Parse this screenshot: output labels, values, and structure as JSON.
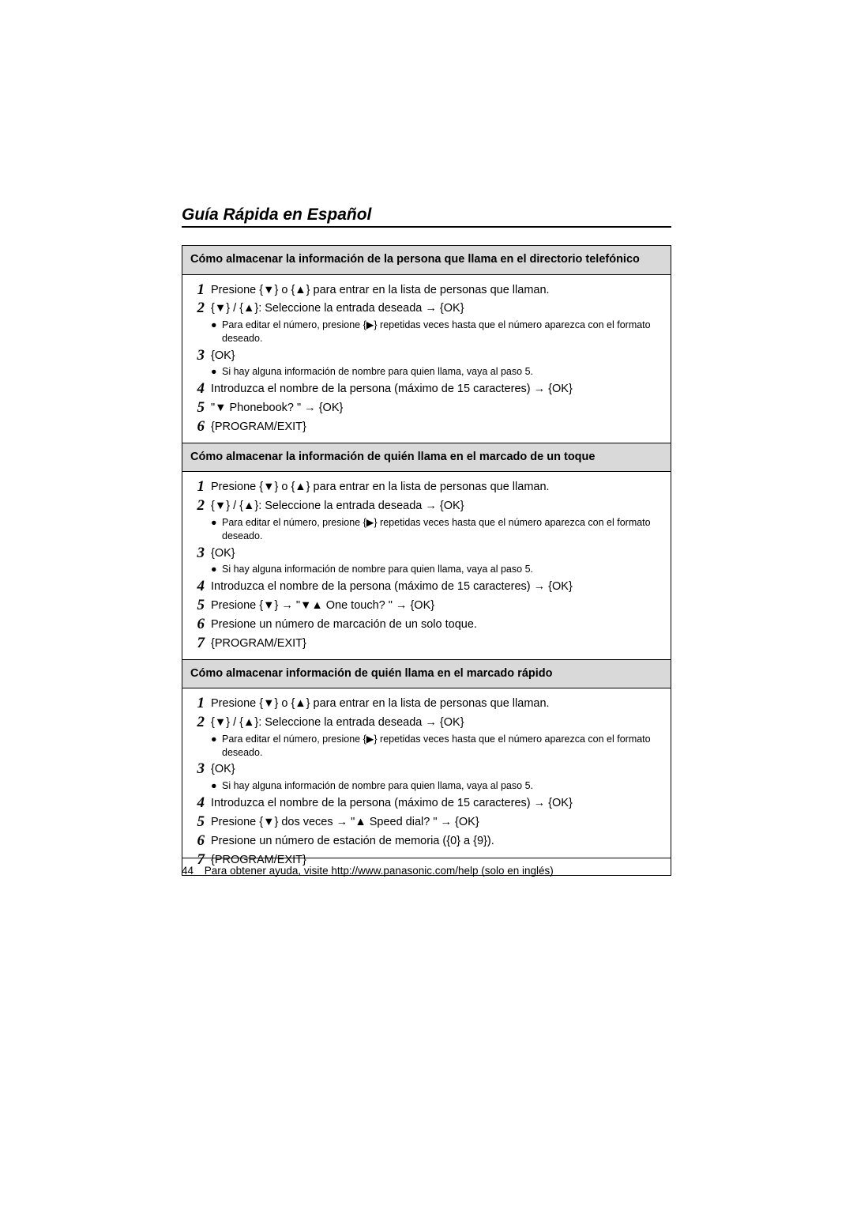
{
  "title": "Guía Rápida en Español",
  "glyphs": {
    "down": "▼",
    "up": "▲",
    "right": "▶",
    "arrow": "→",
    "lb": "{",
    "rb": "}",
    "bullet": "●"
  },
  "sections": [
    {
      "header": "Cómo almacenar la información de la persona que llama en el directorio telefónico",
      "steps": [
        {
          "n": "1",
          "text": "Presione {▼} o {▲} para entrar en la lista de personas que llaman."
        },
        {
          "n": "2",
          "text": "{▼} / {▲}: Seleccione la entrada deseada → {OK}",
          "subs": [
            "Para editar el número, presione {▶} repetidas veces hasta que el número aparezca con el formato deseado."
          ]
        },
        {
          "n": "3",
          "text": "{OK}",
          "subs": [
            "Si hay alguna información de nombre para quien llama, vaya al paso 5."
          ]
        },
        {
          "n": "4",
          "text": "Introduzca el nombre de la persona (máximo de 15 caracteres) → {OK}"
        },
        {
          "n": "5",
          "text": "\"▼ Phonebook?  \" → {OK}"
        },
        {
          "n": "6",
          "text": "{PROGRAM/EXIT}"
        }
      ]
    },
    {
      "header": "Cómo almacenar la información de quién llama en el marcado de un toque",
      "steps": [
        {
          "n": "1",
          "text": "Presione {▼} o {▲} para entrar en la lista de personas que llaman."
        },
        {
          "n": "2",
          "text": "{▼} / {▲}: Seleccione la entrada deseada → {OK}",
          "subs": [
            "Para editar el número, presione {▶} repetidas veces hasta que el número aparezca con el formato deseado."
          ]
        },
        {
          "n": "3",
          "text": "{OK}",
          "subs": [
            "Si hay alguna información de nombre para quien llama, vaya al paso 5."
          ]
        },
        {
          "n": "4",
          "text": "Introduzca el nombre de la persona (máximo de 15 caracteres) → {OK}"
        },
        {
          "n": "5",
          "text": "Presione {▼} → \"▼▲ One touch?    \" → {OK}"
        },
        {
          "n": "6",
          "text": "Presione un número de marcación de un solo toque."
        },
        {
          "n": "7",
          "text": "{PROGRAM/EXIT}"
        }
      ]
    },
    {
      "header": "Cómo almacenar información de quién llama en el marcado rápido",
      "steps": [
        {
          "n": "1",
          "text": "Presione {▼} o {▲} para entrar en la lista de personas que llaman."
        },
        {
          "n": "2",
          "text": "{▼} / {▲}: Seleccione la entrada deseada → {OK}",
          "subs": [
            "Para editar el número, presione {▶} repetidas veces hasta que el número aparezca con el formato deseado."
          ]
        },
        {
          "n": "3",
          "text": "{OK}",
          "subs": [
            "Si hay alguna información de nombre para quien llama, vaya al paso 5."
          ]
        },
        {
          "n": "4",
          "text": "Introduzca el nombre de la persona (máximo de 15 caracteres) → {OK}"
        },
        {
          "n": "5",
          "text": "Presione {▼} dos veces → \"▲ Speed dial?     \" → {OK}"
        },
        {
          "n": "6",
          "text": "Presione un número de estación de memoria ({0} a {9})."
        },
        {
          "n": "7",
          "text": "{PROGRAM/EXIT}"
        }
      ]
    }
  ],
  "footer": {
    "page": "44",
    "text": "Para obtener ayuda, visite http://www.panasonic.com/help (solo en inglés)"
  }
}
